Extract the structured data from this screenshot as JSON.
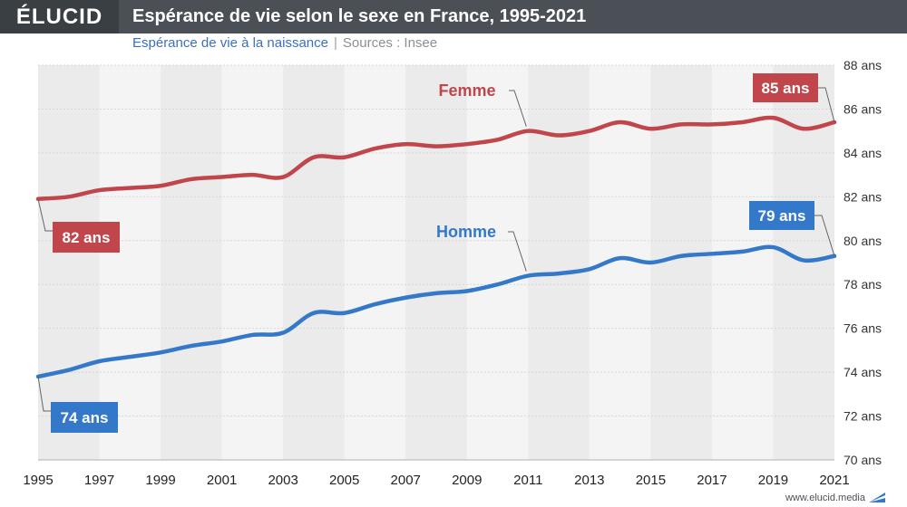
{
  "header": {
    "logo": "ÉLUCID",
    "title": "Espérance de vie selon le sexe en France, 1995-2021",
    "subtitle": "Espérance de vie à la naissance",
    "separator": "|",
    "source": "Sources : Insee"
  },
  "footer": {
    "url": "www.elucid.media"
  },
  "colors": {
    "femme": "#c0464b",
    "homme": "#3478c9",
    "band_dark": "#ebebeb",
    "band_light": "#f4f4f4",
    "header_bg": "#4a5056"
  },
  "chart_data": {
    "type": "line",
    "x": [
      1995,
      1996,
      1997,
      1998,
      1999,
      2000,
      2001,
      2002,
      2003,
      2004,
      2005,
      2006,
      2007,
      2008,
      2009,
      2010,
      2011,
      2012,
      2013,
      2014,
      2015,
      2016,
      2017,
      2018,
      2019,
      2020,
      2021
    ],
    "series": [
      {
        "name": "Femme",
        "values": [
          81.9,
          82.0,
          82.3,
          82.4,
          82.5,
          82.8,
          82.9,
          83.0,
          82.9,
          83.8,
          83.8,
          84.2,
          84.4,
          84.3,
          84.4,
          84.6,
          85.0,
          84.8,
          85.0,
          85.4,
          85.1,
          85.3,
          85.3,
          85.4,
          85.6,
          85.1,
          85.4
        ],
        "start_label": "82 ans",
        "end_label": "85 ans"
      },
      {
        "name": "Homme",
        "values": [
          73.8,
          74.1,
          74.5,
          74.7,
          74.9,
          75.2,
          75.4,
          75.7,
          75.8,
          76.7,
          76.7,
          77.1,
          77.4,
          77.6,
          77.7,
          78.0,
          78.4,
          78.5,
          78.7,
          79.2,
          79.0,
          79.3,
          79.4,
          79.5,
          79.7,
          79.1,
          79.3
        ],
        "start_label": "74 ans",
        "end_label": "79 ans"
      }
    ],
    "ylim": [
      70,
      88
    ],
    "y_ticks": [
      70,
      72,
      74,
      76,
      78,
      80,
      82,
      84,
      86,
      88
    ],
    "y_tick_suffix": " ans",
    "x_ticks": [
      1995,
      1997,
      1999,
      2001,
      2003,
      2005,
      2007,
      2009,
      2011,
      2013,
      2015,
      2017,
      2019,
      2021
    ],
    "grid": true,
    "legend": "inline labels"
  }
}
